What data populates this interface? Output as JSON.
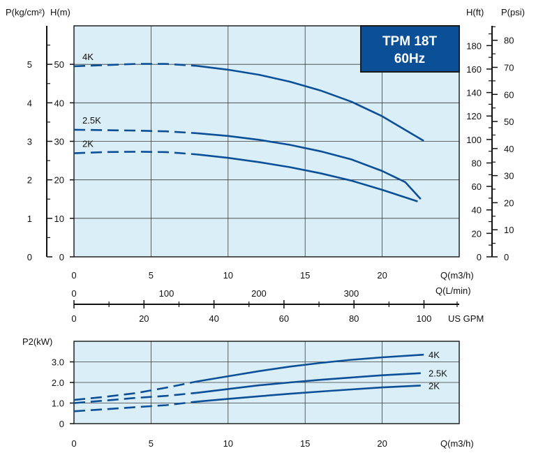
{
  "badge": {
    "model": "TPM 18T",
    "frequency": "60Hz"
  },
  "colors": {
    "plot_bg": "#d9eef7",
    "curve": "#0b4f97",
    "grid": "#3a3a3a",
    "badge_bg": "#0b4f97",
    "badge_border": "#1a1a1a"
  },
  "chart_data": [
    {
      "type": "line",
      "name": "head-curve",
      "xlabel": "Q(m3/h)",
      "ylabel": "H(m)",
      "xlim": [
        0,
        25
      ],
      "ylim": [
        0,
        60
      ],
      "x_ticks": [
        0,
        5,
        10,
        15,
        20
      ],
      "y_ticks": [
        0,
        10,
        20,
        30,
        40,
        50
      ],
      "grid": true,
      "secondary_axes": {
        "left_outer": {
          "label": "P(kg/cm²)",
          "ticks": [
            0,
            1,
            2,
            3,
            4,
            5
          ]
        },
        "right_inner": {
          "label": "H(ft)",
          "ticks": [
            0,
            20,
            40,
            60,
            80,
            100,
            120,
            140,
            160,
            180
          ]
        },
        "right_outer": {
          "label": "P(psi)",
          "ticks": [
            0,
            10,
            20,
            30,
            40,
            50,
            60,
            70,
            80
          ]
        },
        "flow_lpm": {
          "label": "Q(L/min)",
          "ticks": [
            0,
            100,
            200,
            300
          ]
        },
        "flow_usgpm": {
          "label": "US GPM",
          "ticks": [
            0,
            20,
            40,
            60,
            80,
            100
          ]
        }
      },
      "series": [
        {
          "name": "4K",
          "dashed_until": 8,
          "x": [
            0,
            2,
            4,
            6,
            8,
            10,
            12,
            14,
            16,
            18,
            20,
            22.7
          ],
          "y": [
            49.5,
            49.8,
            50.1,
            50.1,
            49.6,
            48.6,
            47.3,
            45.5,
            43.2,
            40.3,
            36.5,
            30.1
          ]
        },
        {
          "name": "2.5K",
          "dashed_until": 8,
          "x": [
            0,
            2,
            4,
            6,
            8,
            10,
            12,
            14,
            16,
            18,
            20,
            21.5,
            22.5
          ],
          "y": [
            33.0,
            32.9,
            32.8,
            32.6,
            32.1,
            31.4,
            30.4,
            29.1,
            27.4,
            25.3,
            22.3,
            19.4,
            15.0
          ]
        },
        {
          "name": "2K",
          "dashed_until": 8,
          "x": [
            0,
            2,
            4,
            6,
            8,
            10,
            12,
            14,
            16,
            18,
            20,
            22.3
          ],
          "y": [
            26.9,
            27.2,
            27.3,
            27.2,
            26.6,
            25.7,
            24.6,
            23.3,
            21.7,
            19.8,
            17.4,
            14.4
          ]
        }
      ]
    },
    {
      "type": "line",
      "name": "power-curve",
      "xlabel": "Q(m3/h)",
      "ylabel": "P2(kW)",
      "xlim": [
        0,
        25
      ],
      "ylim": [
        0,
        4
      ],
      "x_ticks": [
        0,
        5,
        10,
        15,
        20
      ],
      "y_ticks": [
        0,
        1.0,
        2.0,
        3.0
      ],
      "y_tick_labels": [
        "0",
        "1.0",
        "2.0",
        "3.0"
      ],
      "grid": true,
      "series": [
        {
          "name": "4K",
          "dashed_until": 8,
          "x": [
            0,
            2,
            4,
            6,
            8,
            10,
            12,
            14,
            16,
            18,
            20,
            22.7
          ],
          "y": [
            1.15,
            1.3,
            1.48,
            1.75,
            2.05,
            2.3,
            2.55,
            2.77,
            2.95,
            3.1,
            3.22,
            3.35
          ]
        },
        {
          "name": "2.5K",
          "dashed_until": 8,
          "x": [
            0,
            2,
            4,
            6,
            8,
            10,
            12,
            14,
            16,
            18,
            20,
            22.5
          ],
          "y": [
            1.0,
            1.12,
            1.25,
            1.35,
            1.5,
            1.68,
            1.86,
            2.0,
            2.13,
            2.24,
            2.35,
            2.45
          ]
        },
        {
          "name": "2K",
          "dashed_until": 8,
          "x": [
            0,
            2,
            4,
            6,
            8,
            10,
            12,
            14,
            16,
            18,
            20,
            22.5
          ],
          "y": [
            0.6,
            0.7,
            0.8,
            0.9,
            1.07,
            1.2,
            1.33,
            1.45,
            1.56,
            1.66,
            1.76,
            1.85
          ]
        }
      ]
    }
  ]
}
